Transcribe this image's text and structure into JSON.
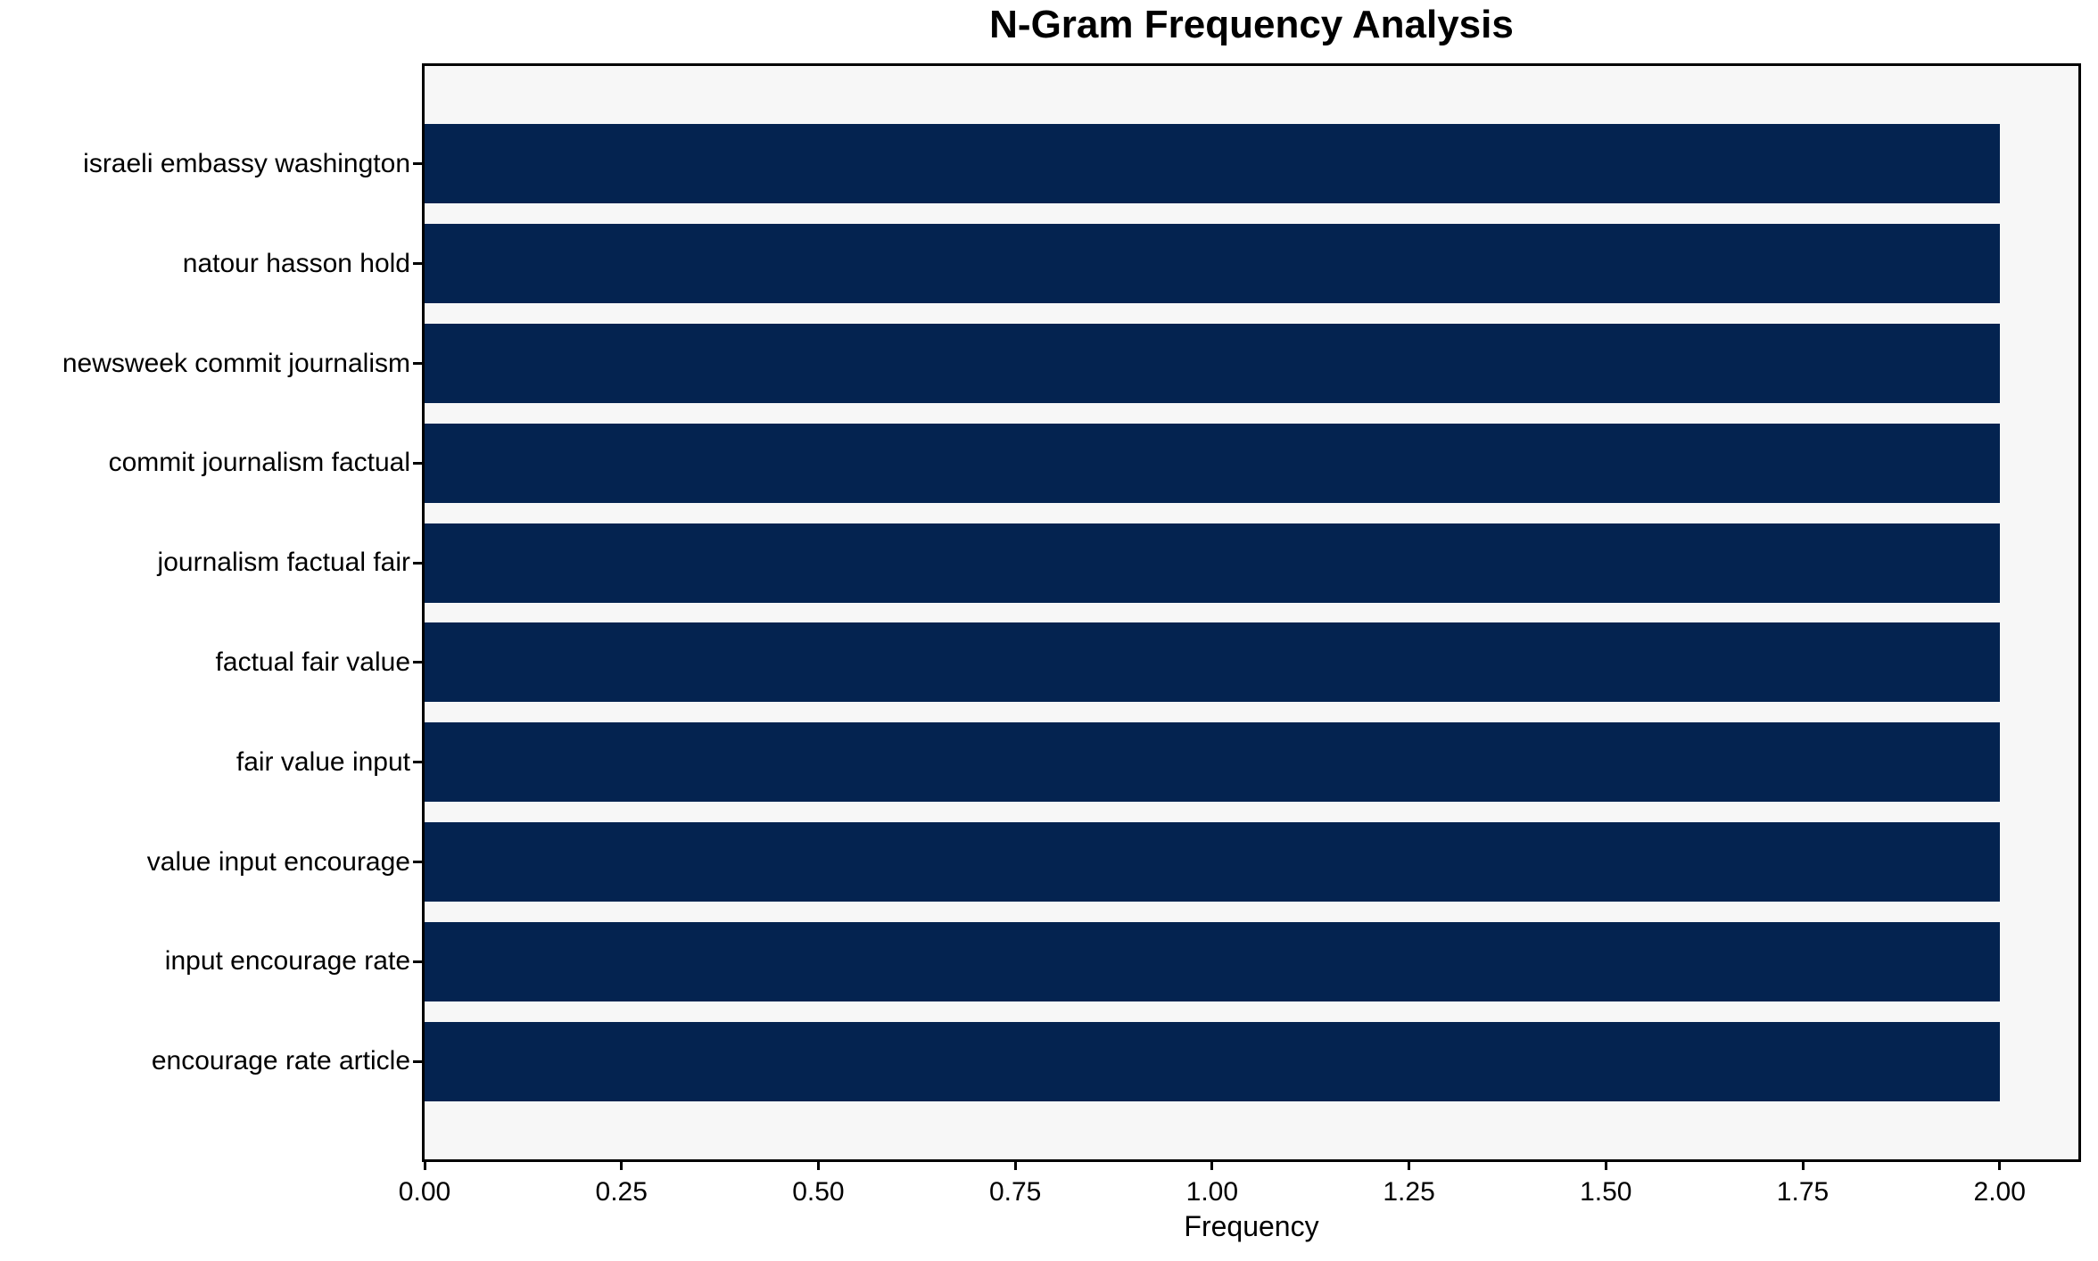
{
  "chart_data": {
    "type": "bar",
    "orientation": "horizontal",
    "title": "N-Gram Frequency Analysis",
    "xlabel": "Frequency",
    "ylabel": "",
    "categories": [
      "israeli embassy washington",
      "natour hasson hold",
      "newsweek commit journalism",
      "commit journalism factual",
      "journalism factual fair",
      "factual fair value",
      "fair value input",
      "value input encourage",
      "input encourage rate",
      "encourage rate article"
    ],
    "values": [
      2.0,
      2.0,
      2.0,
      2.0,
      2.0,
      2.0,
      2.0,
      2.0,
      2.0,
      2.0
    ],
    "xlim": [
      0,
      2.1
    ],
    "xticks": [
      0.0,
      0.25,
      0.5,
      0.75,
      1.0,
      1.25,
      1.5,
      1.75,
      2.0
    ],
    "xtick_labels": [
      "0.00",
      "0.25",
      "0.50",
      "0.75",
      "1.00",
      "1.25",
      "1.50",
      "1.75",
      "2.00"
    ],
    "grid": false,
    "legend": null,
    "bar_height_ratio": 0.8,
    "colors": {
      "bar": "#042350",
      "plot_bg": "#f7f7f7",
      "fig_bg": "#ffffff",
      "axis": "#000000",
      "text": "#000000"
    }
  }
}
